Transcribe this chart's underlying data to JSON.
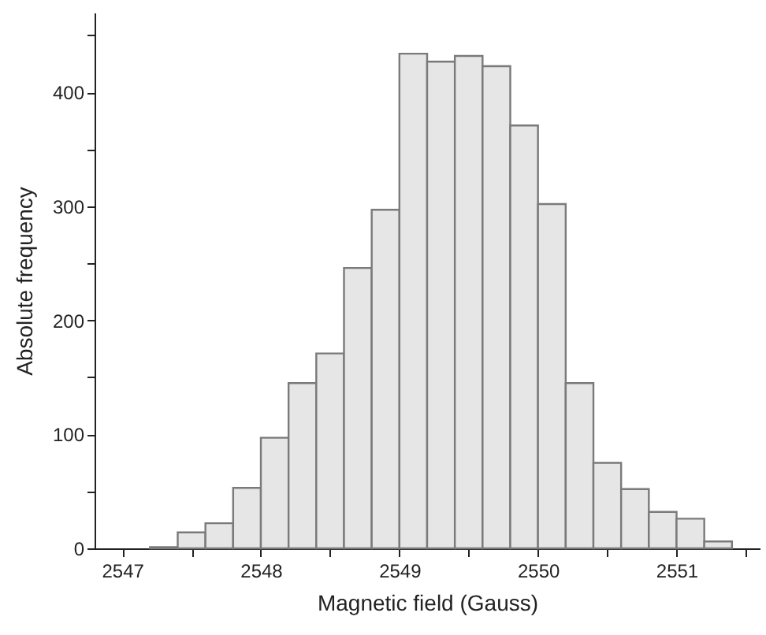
{
  "chart_data": {
    "type": "histogram",
    "xlabel": "Magnetic field (Gauss)",
    "ylabel": "Absolute frequency",
    "bins": [
      2547.2,
      2547.4,
      2547.6,
      2547.8,
      2548.0,
      2548.2,
      2548.4,
      2548.6,
      2548.8,
      2549.0,
      2549.2,
      2549.4,
      2549.6,
      2549.8,
      2550.0,
      2550.2,
      2550.4,
      2550.6,
      2550.8,
      2551.0,
      2551.2,
      2551.4
    ],
    "values": [
      1,
      14,
      22,
      53,
      97,
      145,
      171,
      246,
      297,
      434,
      427,
      432,
      423,
      371,
      302,
      145,
      75,
      52,
      32,
      26,
      6
    ],
    "color": "#e6e6e6",
    "xlim": [
      2546.8,
      2551.6
    ],
    "xticks": [
      2547,
      {
        "value": 2547.5,
        "label": null
      },
      2548,
      {
        "value": 2548.5,
        "label": null
      },
      2549,
      {
        "value": 2549.5,
        "label": null
      },
      2550,
      {
        "value": 2550.5,
        "label": null
      },
      2551,
      {
        "value": 2551.5,
        "label": null
      }
    ],
    "ylim": [
      0,
      470
    ],
    "yticks": [
      0,
      {
        "value": 50,
        "label": null
      },
      100,
      {
        "value": 150,
        "label": null
      },
      200,
      {
        "value": 250,
        "label": null
      },
      300,
      {
        "value": 350,
        "label": null
      },
      400,
      {
        "value": 450,
        "label": null
      }
    ],
    "grid": false
  }
}
